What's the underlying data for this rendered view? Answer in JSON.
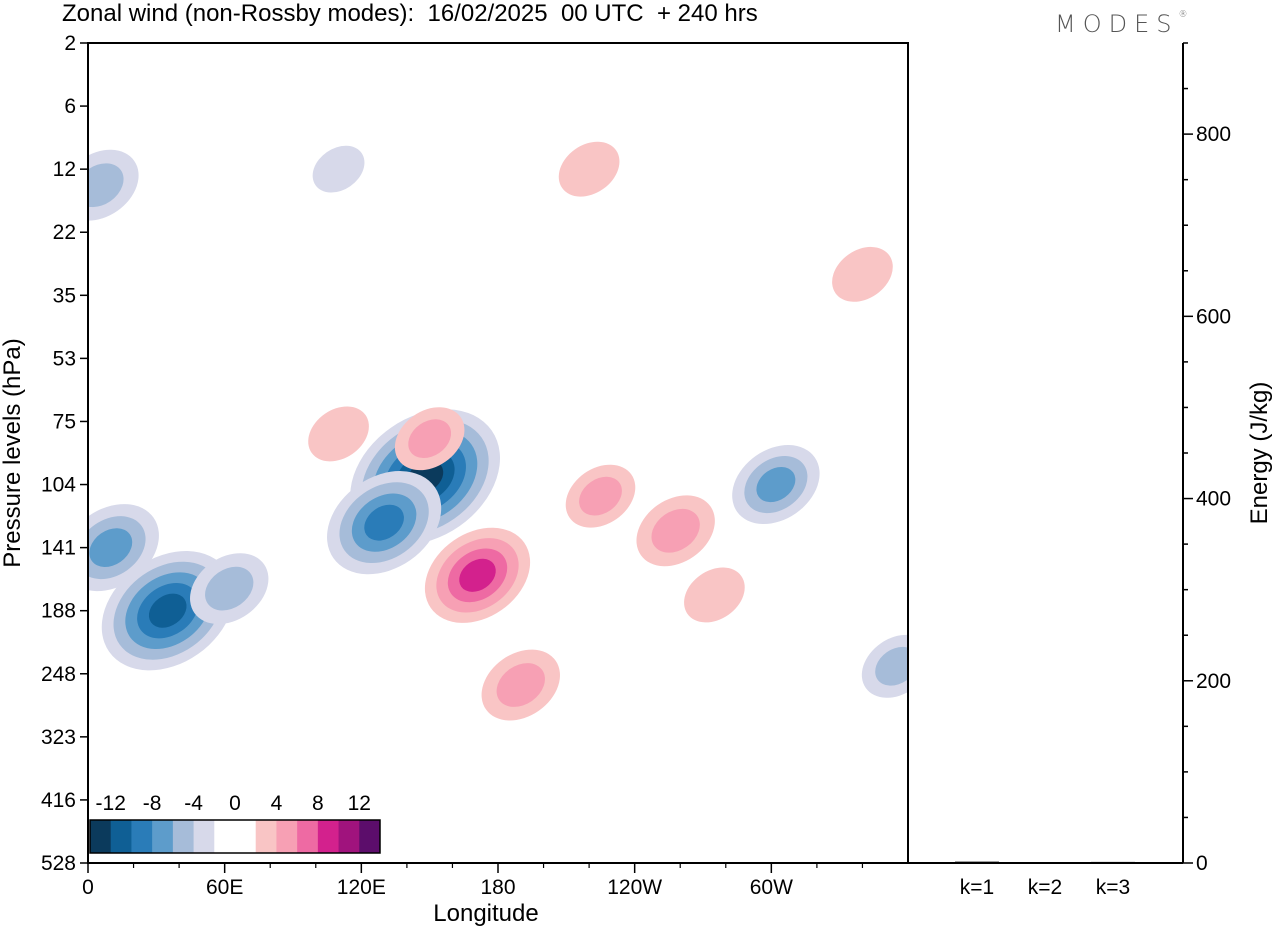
{
  "title": "Zonal wind (non-Rossby modes):  16/02/2025  00 UTC  + 240 hrs",
  "logo": {
    "text": "MODES",
    "mark": "®"
  },
  "chart_data": [
    {
      "type": "heatmap",
      "title": "Zonal wind (non-Rossby modes):  16/02/2025  00 UTC  + 240 hrs",
      "xlabel": "Longitude",
      "ylabel": "Pressure levels (hPa)",
      "x_ticks": [
        "0",
        "60E",
        "120E",
        "180",
        "120W",
        "60W"
      ],
      "y_ticks": [
        "2",
        "6",
        "12",
        "22",
        "35",
        "53",
        "75",
        "104",
        "141",
        "188",
        "248",
        "323",
        "416",
        "528"
      ],
      "colorbar": {
        "labels": [
          "-12",
          "-8",
          "-4",
          "0",
          "4",
          "8",
          "12"
        ],
        "colors": [
          "#0b3a5c",
          "#0f5f95",
          "#2a7cb8",
          "#5d9ccb",
          "#a6bcd9",
          "#d7d9ea",
          "#ffffff",
          "#ffffff",
          "#f9c5c5",
          "#f7a0b4",
          "#ee6aa3",
          "#d3218d",
          "#a0137d",
          "#5c0d6b"
        ]
      },
      "features": [
        {
          "lon": 35,
          "level": 188,
          "u": -11
        },
        {
          "lon": 10,
          "level": 141,
          "u": -7
        },
        {
          "lon": 62,
          "level": 170,
          "u": -5
        },
        {
          "lon": 148,
          "level": 100,
          "u": -13
        },
        {
          "lon": 130,
          "level": 125,
          "u": -9
        },
        {
          "lon": 171,
          "level": 160,
          "u": 8
        },
        {
          "lon": 190,
          "level": 260,
          "u": 5
        },
        {
          "lon": 225,
          "level": 110,
          "u": 4
        },
        {
          "lon": 258,
          "level": 130,
          "u": 5
        },
        {
          "lon": 302,
          "level": 104,
          "u": -6
        },
        {
          "lon": 150,
          "level": 82,
          "u": 4
        },
        {
          "lon": 110,
          "level": 80,
          "u": 3
        },
        {
          "lon": 220,
          "level": 12,
          "u": 3
        },
        {
          "lon": 110,
          "level": 12,
          "u": -2
        },
        {
          "lon": 5,
          "level": 14,
          "u": -5
        },
        {
          "lon": 275,
          "level": 175,
          "u": 3
        },
        {
          "lon": 355,
          "level": 240,
          "u": -4
        },
        {
          "lon": 340,
          "level": 30,
          "u": 3
        }
      ]
    },
    {
      "type": "bar",
      "categories": [
        "k=1",
        "k=2",
        "k=3"
      ],
      "values": [
        1.5,
        1.0,
        1.2
      ],
      "ylabel": "Energy (J/kg)",
      "ylim": [
        0,
        900
      ],
      "y_ticks": [
        0,
        200,
        400,
        600,
        800
      ]
    }
  ]
}
